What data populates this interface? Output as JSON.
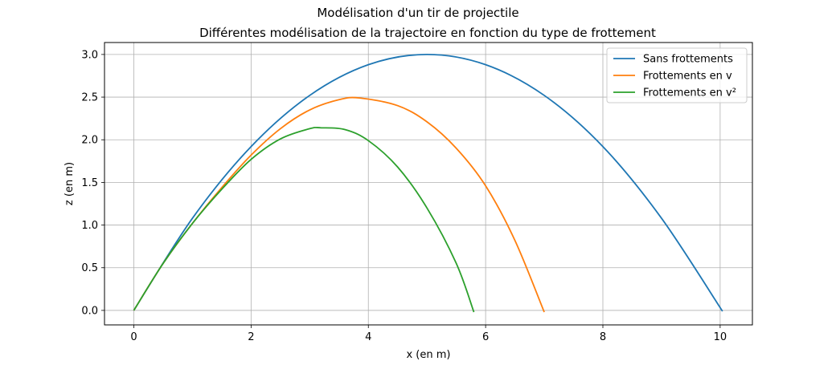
{
  "chart_data": {
    "type": "line",
    "suptitle": "Modélisation d'un tir de projectile",
    "title": "Différentes modélisation de la trajectoire en fonction du type de frottement",
    "xlabel": "x (en m)",
    "ylabel": "z (en m)",
    "xlim": [
      -0.5,
      10.55
    ],
    "ylim": [
      -0.17,
      3.14
    ],
    "xticks": [
      0,
      2,
      4,
      6,
      8,
      10
    ],
    "yticks": [
      0.0,
      0.5,
      1.0,
      1.5,
      2.0,
      2.5,
      3.0
    ],
    "xtick_labels": [
      "0",
      "2",
      "4",
      "6",
      "8",
      "10"
    ],
    "ytick_labels": [
      "0.0",
      "0.5",
      "1.0",
      "1.5",
      "2.0",
      "2.5",
      "3.0"
    ],
    "grid": true,
    "legend_position": "top-right",
    "series": [
      {
        "name": "Sans frottements",
        "color": "#1f77b4",
        "x": [
          0,
          1,
          2,
          3,
          4,
          5,
          6,
          7,
          8,
          9,
          10.04
        ],
        "y": [
          0,
          1.08,
          1.92,
          2.52,
          2.88,
          3.0,
          2.88,
          2.52,
          1.92,
          1.08,
          -0.01
        ]
      },
      {
        "name": "Frottements en v",
        "color": "#ff7f0e",
        "x": [
          0,
          0.5,
          1,
          1.5,
          2,
          2.5,
          3,
          3.5,
          3.85,
          4.5,
          5,
          5.5,
          6,
          6.5,
          7.0
        ],
        "y": [
          0,
          0.55,
          1.02,
          1.44,
          1.82,
          2.13,
          2.35,
          2.47,
          2.49,
          2.4,
          2.21,
          1.9,
          1.46,
          0.82,
          -0.02
        ]
      },
      {
        "name": "Frottements en v²",
        "color": "#2ca02c",
        "x": [
          0,
          0.5,
          1,
          1.5,
          2,
          2.5,
          3,
          3.2,
          3.6,
          4,
          4.5,
          5,
          5.5,
          5.8
        ],
        "y": [
          0,
          0.55,
          1.02,
          1.42,
          1.77,
          2.01,
          2.13,
          2.14,
          2.12,
          1.99,
          1.68,
          1.2,
          0.55,
          -0.02
        ]
      }
    ]
  }
}
